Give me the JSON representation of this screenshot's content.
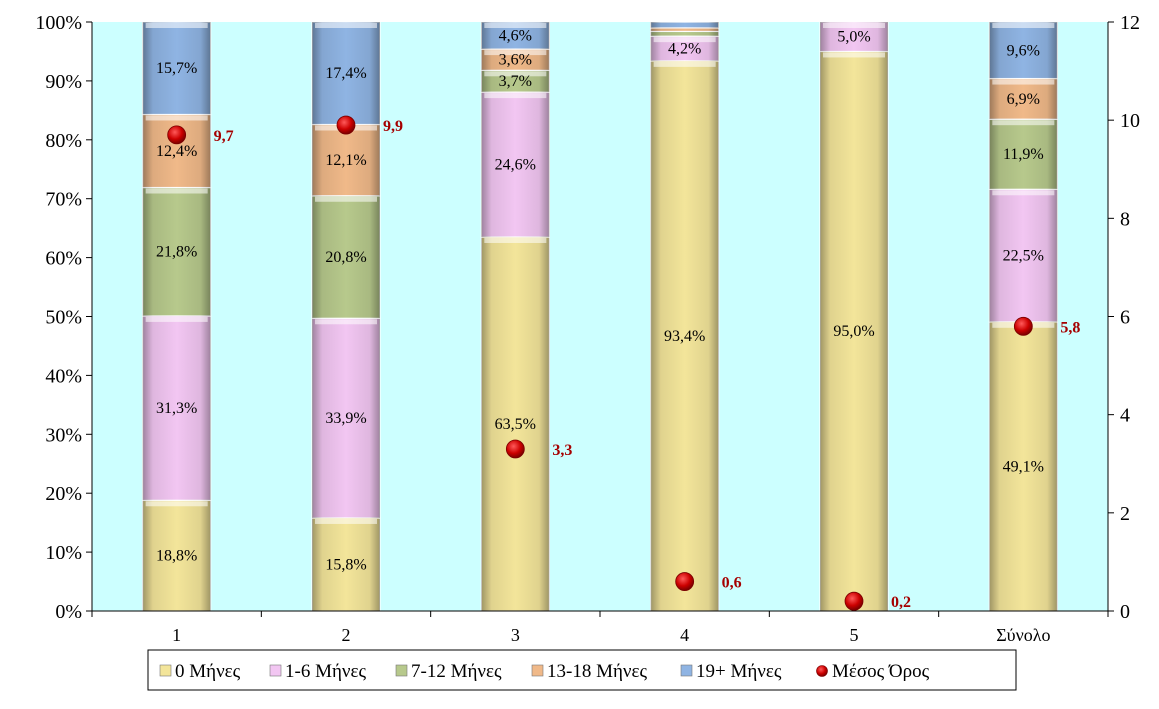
{
  "chart_data": {
    "type": "bar",
    "stacked": true,
    "percent_stacked": true,
    "categories": [
      "1",
      "2",
      "3",
      "4",
      "5",
      "Σύνολο"
    ],
    "series": [
      {
        "name": "0 Μήνες",
        "color": "#f3e59a",
        "values": [
          18.8,
          15.8,
          63.5,
          93.4,
          95.0,
          49.1
        ]
      },
      {
        "name": "1-6 Μήνες",
        "color": "#f2c6f2",
        "values": [
          31.3,
          33.9,
          24.6,
          4.2,
          5.0,
          22.5
        ]
      },
      {
        "name": "7-12 Μήνες",
        "color": "#b7c98c",
        "values": [
          21.8,
          20.8,
          3.7,
          0.8,
          0.0,
          11.9
        ]
      },
      {
        "name": "13-18 Μήνες",
        "color": "#f0b989",
        "values": [
          12.4,
          12.1,
          3.6,
          0.6,
          0.0,
          6.9
        ]
      },
      {
        "name": "19+  Μήνες",
        "color": "#8fb4e3",
        "values": [
          15.7,
          17.4,
          4.6,
          1.0,
          0.0,
          9.6
        ]
      }
    ],
    "segment_labels": [
      [
        "18,8%",
        "15,8%",
        "63,5%",
        "93,4%",
        "95,0%",
        "49,1%"
      ],
      [
        "31,3%",
        "33,9%",
        "24,6%",
        "4,2%",
        "5,0%",
        "22,5%"
      ],
      [
        "21,8%",
        "20,8%",
        "3,7%",
        "",
        "",
        "11,9%"
      ],
      [
        "12,4%",
        "12,1%",
        "3,6%",
        "",
        "",
        "6,9%"
      ],
      [
        "15,7%",
        "17,4%",
        "4,6%",
        "",
        "",
        "9,6%"
      ]
    ],
    "mean_series": {
      "name": "Μέσος Όρος",
      "color": "#cc0000",
      "label_color": "#a50000",
      "values": [
        9.7,
        9.9,
        3.3,
        0.6,
        0.2,
        5.8
      ],
      "labels": [
        "9,7",
        "9,9",
        "3,3",
        "0,6",
        "0,2",
        "5,8"
      ]
    },
    "y_left": {
      "min": 0,
      "max": 100,
      "ticks": [
        0,
        10,
        20,
        30,
        40,
        50,
        60,
        70,
        80,
        90,
        100
      ],
      "tick_labels": [
        "0%",
        "10%",
        "20%",
        "30%",
        "40%",
        "50%",
        "60%",
        "70%",
        "80%",
        "90%",
        "100%"
      ]
    },
    "y_right": {
      "min": 0,
      "max": 12,
      "ticks": [
        0,
        2,
        4,
        6,
        8,
        10,
        12
      ],
      "tick_labels": [
        "0",
        "2",
        "4",
        "6",
        "8",
        "10",
        "12"
      ]
    },
    "plot_background": "#ccffff",
    "legend_position": "bottom",
    "grid": false
  }
}
